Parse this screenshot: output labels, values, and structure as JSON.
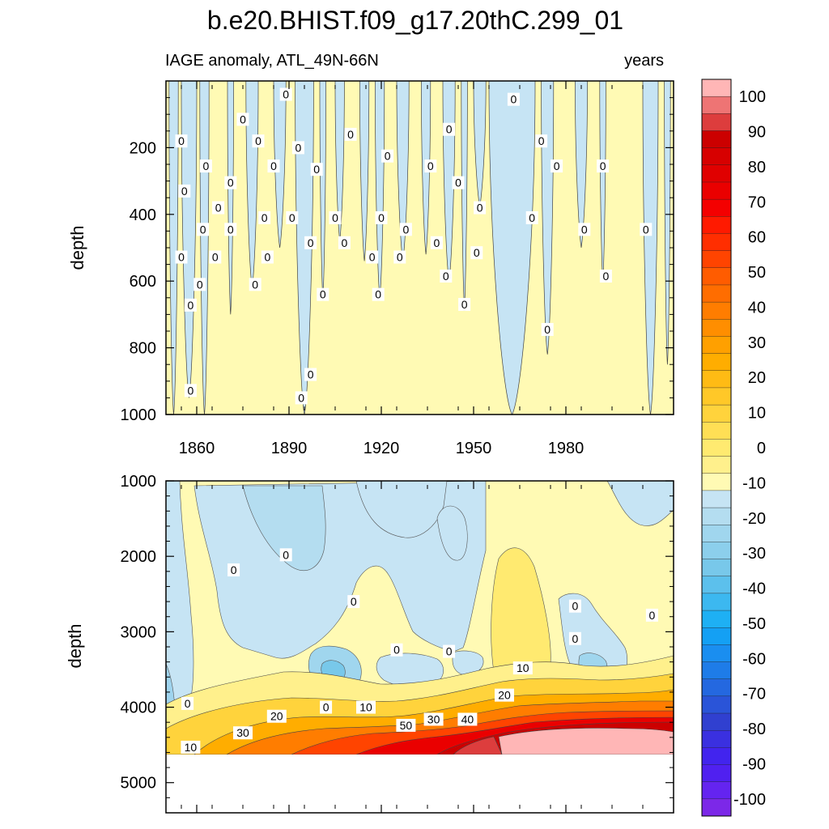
{
  "title": "b.e20.BHIST.f09_g17.20thC.299_01",
  "chart_data": {
    "type": "heatmap",
    "title": "b.e20.BHIST.f09_g17.20thC.299_01",
    "subtitle_left": "IAGE anomaly, ATL_49N-66N",
    "subtitle_right": "years",
    "xlim": [
      1850,
      2015
    ],
    "x_ticks": [
      1860,
      1890,
      1920,
      1950,
      1980
    ],
    "x_tick_labels": [
      "1860",
      "1890",
      "1920",
      "1950",
      "1980"
    ],
    "upper_panel": {
      "ylabel": "depth",
      "ylim": [
        0,
        1000
      ],
      "y_ticks": [
        200,
        400,
        600,
        800,
        1000
      ],
      "y_tick_labels": [
        "200",
        "400",
        "600",
        "800",
        "1000"
      ],
      "negative_bands": [
        [
          1851,
          1854,
          0,
          1000
        ],
        [
          1855,
          1860,
          0,
          950
        ],
        [
          1861,
          1864,
          0,
          1000
        ],
        [
          1870,
          1872,
          0,
          700
        ],
        [
          1876,
          1880,
          0,
          620
        ],
        [
          1885,
          1889,
          0,
          500
        ],
        [
          1892,
          1898,
          0,
          1000
        ],
        [
          1900,
          1902,
          0,
          650
        ],
        [
          1905,
          1908,
          0,
          480
        ],
        [
          1913,
          1916,
          0,
          540
        ],
        [
          1918,
          1921,
          0,
          650
        ],
        [
          1925,
          1929,
          0,
          540
        ],
        [
          1933,
          1936,
          0,
          520
        ],
        [
          1940,
          1944,
          0,
          600
        ],
        [
          1946,
          1948,
          0,
          680
        ],
        [
          1950,
          1954,
          0,
          380
        ],
        [
          1955,
          1970,
          0,
          1000
        ],
        [
          1972,
          1976,
          0,
          820
        ],
        [
          1983,
          1987,
          0,
          500
        ],
        [
          1991,
          1993,
          0,
          600
        ],
        [
          2005,
          2010,
          0,
          1000
        ],
        [
          2012,
          2014,
          0,
          850
        ]
      ],
      "contour_labels": [
        {
          "x": 1855,
          "y": 180,
          "text": "0"
        },
        {
          "x": 1863,
          "y": 255,
          "text": "0"
        },
        {
          "x": 1856,
          "y": 330,
          "text": "0"
        },
        {
          "x": 1867,
          "y": 380,
          "text": "0"
        },
        {
          "x": 1862,
          "y": 445,
          "text": "0"
        },
        {
          "x": 1871,
          "y": 445,
          "text": "0"
        },
        {
          "x": 1855,
          "y": 528,
          "text": "0"
        },
        {
          "x": 1866,
          "y": 528,
          "text": "0"
        },
        {
          "x": 1861,
          "y": 610,
          "text": "0"
        },
        {
          "x": 1858,
          "y": 672,
          "text": "0"
        },
        {
          "x": 1858,
          "y": 928,
          "text": "0"
        },
        {
          "x": 1875,
          "y": 115,
          "text": "0"
        },
        {
          "x": 1871,
          "y": 305,
          "text": "0"
        },
        {
          "x": 1880,
          "y": 180,
          "text": "0"
        },
        {
          "x": 1879,
          "y": 610,
          "text": "0"
        },
        {
          "x": 1882,
          "y": 410,
          "text": "0"
        },
        {
          "x": 1883,
          "y": 528,
          "text": "0"
        },
        {
          "x": 1885,
          "y": 255,
          "text": "0"
        },
        {
          "x": 1889,
          "y": 40,
          "text": "0"
        },
        {
          "x": 1891,
          "y": 410,
          "text": "0"
        },
        {
          "x": 1893,
          "y": 200,
          "text": "0"
        },
        {
          "x": 1897,
          "y": 485,
          "text": "0"
        },
        {
          "x": 1899,
          "y": 265,
          "text": "0"
        },
        {
          "x": 1901,
          "y": 640,
          "text": "0"
        },
        {
          "x": 1897,
          "y": 880,
          "text": "0"
        },
        {
          "x": 1894,
          "y": 950,
          "text": "0"
        },
        {
          "x": 1905,
          "y": 410,
          "text": "0"
        },
        {
          "x": 1908,
          "y": 485,
          "text": "0"
        },
        {
          "x": 1910,
          "y": 160,
          "text": "0"
        },
        {
          "x": 1917,
          "y": 528,
          "text": "0"
        },
        {
          "x": 1920,
          "y": 410,
          "text": "0"
        },
        {
          "x": 1922,
          "y": 225,
          "text": "0"
        },
        {
          "x": 1919,
          "y": 640,
          "text": "0"
        },
        {
          "x": 1926,
          "y": 528,
          "text": "0"
        },
        {
          "x": 1928,
          "y": 445,
          "text": "0"
        },
        {
          "x": 1936,
          "y": 255,
          "text": "0"
        },
        {
          "x": 1938,
          "y": 485,
          "text": "0"
        },
        {
          "x": 1942,
          "y": 145,
          "text": "0"
        },
        {
          "x": 1941,
          "y": 585,
          "text": "0"
        },
        {
          "x": 1945,
          "y": 305,
          "text": "0"
        },
        {
          "x": 1947,
          "y": 670,
          "text": "0"
        },
        {
          "x": 1952,
          "y": 380,
          "text": "0"
        },
        {
          "x": 1951,
          "y": 515,
          "text": "0"
        },
        {
          "x": 1963,
          "y": 55,
          "text": "0"
        },
        {
          "x": 1969,
          "y": 410,
          "text": "0"
        },
        {
          "x": 1972,
          "y": 180,
          "text": "0"
        },
        {
          "x": 1974,
          "y": 745,
          "text": "0"
        },
        {
          "x": 1977,
          "y": 255,
          "text": "0"
        },
        {
          "x": 1986,
          "y": 445,
          "text": "0"
        },
        {
          "x": 1992,
          "y": 255,
          "text": "0"
        },
        {
          "x": 1993,
          "y": 585,
          "text": "0"
        },
        {
          "x": 2006,
          "y": 445,
          "text": "0"
        }
      ]
    },
    "lower_panel": {
      "ylabel": "depth",
      "ylim": [
        1000,
        5400
      ],
      "y_ticks": [
        1000,
        2000,
        3000,
        4000,
        5000
      ],
      "y_tick_labels": [
        "1000",
        "2000",
        "3000",
        "4000",
        "5000"
      ],
      "data_bottom_depth": 4600,
      "contour_labels": [
        {
          "x": 1857,
          "y": 3950,
          "text": "0"
        },
        {
          "x": 1858,
          "y": 4530,
          "text": "10"
        },
        {
          "x": 1872,
          "y": 2180,
          "text": "0"
        },
        {
          "x": 1875,
          "y": 4340,
          "text": "30"
        },
        {
          "x": 1886,
          "y": 4120,
          "text": "20"
        },
        {
          "x": 1889,
          "y": 1980,
          "text": "0"
        },
        {
          "x": 1911,
          "y": 2600,
          "text": "0"
        },
        {
          "x": 1902,
          "y": 4000,
          "text": "0"
        },
        {
          "x": 1915,
          "y": 4000,
          "text": "10"
        },
        {
          "x": 1925,
          "y": 3240,
          "text": "0"
        },
        {
          "x": 1942,
          "y": 3260,
          "text": "0"
        },
        {
          "x": 1928,
          "y": 4240,
          "text": "50"
        },
        {
          "x": 1937,
          "y": 4160,
          "text": "30"
        },
        {
          "x": 1948,
          "y": 4160,
          "text": "40"
        },
        {
          "x": 1960,
          "y": 3840,
          "text": "20"
        },
        {
          "x": 1966,
          "y": 3480,
          "text": "10"
        },
        {
          "x": 1983,
          "y": 2660,
          "text": "0"
        },
        {
          "x": 1983,
          "y": 3090,
          "text": "0"
        },
        {
          "x": 2008,
          "y": 2780,
          "text": "0"
        }
      ]
    },
    "colorbar": {
      "labels": [
        "100",
        "90",
        "80",
        "70",
        "60",
        "50",
        "40",
        "30",
        "20",
        "10",
        "0",
        "-10",
        "-20",
        "-30",
        "-40",
        "-50",
        "-60",
        "-70",
        "-80",
        "-90",
        "-100"
      ],
      "colors_top_to_bottom": [
        "#ffb6b6",
        "#ee7474",
        "#dd3d3d",
        "#cc0000",
        "#d70000",
        "#e00000",
        "#ea0000",
        "#f40000",
        "#ff1a00",
        "#ff2e00",
        "#ff4400",
        "#ff5c00",
        "#ff6d00",
        "#ff7d00",
        "#ff8e00",
        "#ffa000",
        "#ffad00",
        "#ffbb14",
        "#ffc828",
        "#ffd33c",
        "#ffdf55",
        "#ffea70",
        "#fff08c",
        "#fffab4",
        "#c6e4f4",
        "#b4ddf0",
        "#a0d6ee",
        "#8ccfec",
        "#78c8ea",
        "#5cc0ec",
        "#3cb8f0",
        "#1eb0f4",
        "#14a0f4",
        "#1a8ef0",
        "#1e7ce8",
        "#2468e0",
        "#2a54d8",
        "#3040d0",
        "#3a30e0",
        "#4224ee",
        "#5020f0",
        "#6424f0",
        "#7c28e8"
      ]
    }
  }
}
